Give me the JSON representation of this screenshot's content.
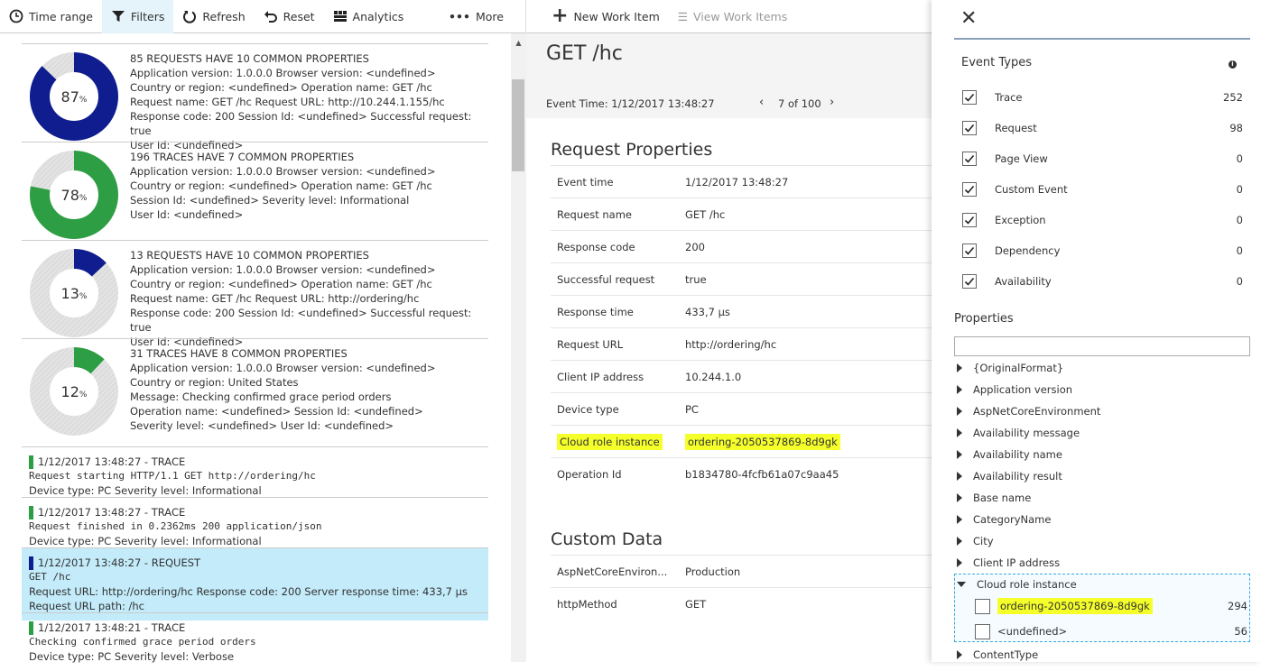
{
  "toolbar": {
    "time_range": "Time range",
    "filters": "Filters",
    "refresh": "Refresh",
    "reset": "Reset",
    "analytics": "Analytics",
    "more": "More"
  },
  "groups": [
    {
      "title": "85 REQUESTS HAVE 10 COMMON PROPERTIES",
      "percent": 87,
      "color": "#0f1d8f",
      "lines": [
        "Application version: 1.0.0.0  Browser version: <undefined>",
        "Country or region: <undefined>  Operation name: GET /hc",
        "Request name: GET /hc  Request URL: http://10.244.1.155/hc",
        "Response code: 200  Session Id: <undefined>  Successful request: true",
        "User Id: <undefined>"
      ]
    },
    {
      "title": "196 TRACES HAVE 7 COMMON PROPERTIES",
      "percent": 78,
      "color": "#2e9e44",
      "lines": [
        "Application version: 1.0.0.0  Browser version: <undefined>",
        "Country or region: <undefined>  Operation name: GET /hc",
        "Session Id: <undefined>  Severity level: Informational",
        "User Id: <undefined>"
      ]
    },
    {
      "title": "13 REQUESTS HAVE 10 COMMON PROPERTIES",
      "percent": 13,
      "color": "#0f1d8f",
      "lines": [
        "Application version: 1.0.0.0  Browser version: <undefined>",
        "Country or region: <undefined>  Operation name: GET /hc",
        "Request name: GET /hc  Request URL: http://ordering/hc",
        "Response code: 200  Session Id: <undefined>  Successful request: true",
        "User Id: <undefined>"
      ]
    },
    {
      "title": "31 TRACES HAVE 8 COMMON PROPERTIES",
      "percent": 12,
      "color": "#2e9e44",
      "lines": [
        "Application version: 1.0.0.0  Browser version: <undefined>",
        "Country or region: United States",
        "Message: Checking confirmed grace period orders",
        "Operation name: <undefined>  Session Id: <undefined>",
        "Severity level: <undefined>  User Id: <undefined>"
      ]
    }
  ],
  "events": [
    {
      "header": "1/12/2017 13:48:27 - TRACE",
      "color": "#2e9e44",
      "message": "Request starting HTTP/1.1 GET http://ordering/hc",
      "details": [
        "Device type: PC  Severity level: Informational"
      ]
    },
    {
      "header": "1/12/2017 13:48:27 - TRACE",
      "color": "#2e9e44",
      "message": "Request finished in 0.2362ms 200 application/json",
      "details": [
        "Device type: PC  Severity level: Informational"
      ]
    },
    {
      "header": "1/12/2017 13:48:27 - REQUEST",
      "color": "#0f1d8f",
      "message": "GET /hc",
      "details": [
        "Request URL: http://ordering/hc  Response code: 200  Server response time: 433,7 µs",
        "Request URL path: /hc"
      ],
      "selected": true
    },
    {
      "header": "1/12/2017 13:48:21 - TRACE",
      "color": "#2e9e44",
      "message": "Checking confirmed grace period orders",
      "details": [
        "Device type: PC  Severity level: Verbose"
      ]
    }
  ],
  "detail": {
    "new_work_item": "New Work Item",
    "view_work_items": "View Work Items",
    "title": "GET /hc",
    "event_time": "Event Time: 1/12/2017 13:48:27",
    "pager": "7 of 100",
    "request_properties_title": "Request Properties",
    "request_properties": [
      [
        "Event time",
        "1/12/2017 13:48:27"
      ],
      [
        "Request name",
        "GET /hc"
      ],
      [
        "Response code",
        "200"
      ],
      [
        "Successful request",
        "true"
      ],
      [
        "Response time",
        "433,7 µs"
      ],
      [
        "Request URL",
        "http://ordering/hc"
      ],
      [
        "Client IP address",
        "10.244.1.0"
      ],
      [
        "Device type",
        "PC"
      ],
      [
        "Cloud role instance",
        "ordering-2050537869-8d9gk"
      ],
      [
        "Operation Id",
        "b1834780-4fcfb61a07c9aa45"
      ]
    ],
    "custom_data_title": "Custom Data",
    "custom_data": [
      [
        "AspNetCoreEnviron...",
        "Production"
      ],
      [
        "httpMethod",
        "GET"
      ]
    ]
  },
  "filters": {
    "event_types_title": "Event Types",
    "event_types": [
      [
        "Trace",
        "252"
      ],
      [
        "Request",
        "98"
      ],
      [
        "Page View",
        "0"
      ],
      [
        "Custom Event",
        "0"
      ],
      [
        "Exception",
        "0"
      ],
      [
        "Dependency",
        "0"
      ],
      [
        "Availability",
        "0"
      ]
    ],
    "properties_title": "Properties",
    "search_value": "",
    "properties": [
      "{OriginalFormat}",
      "Application version",
      "AspNetCoreEnvironment",
      "Availability message",
      "Availability name",
      "Availability result",
      "Base name",
      "CategoryName",
      "City",
      "Client IP address"
    ],
    "expanded": {
      "name": "Cloud role instance",
      "values": [
        [
          "ordering-2050537869-8d9gk",
          "294"
        ],
        [
          "<undefined>",
          "56"
        ]
      ]
    },
    "after": [
      "ContentType"
    ]
  }
}
